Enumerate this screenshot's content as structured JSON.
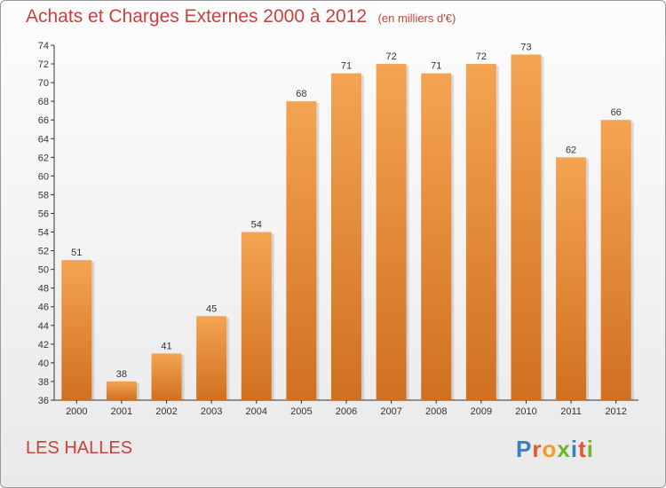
{
  "header": {
    "title": "Achats et Charges Externes 2000 à 2012",
    "unit": "(en milliers d'€)"
  },
  "footer": {
    "place": "LES HALLES",
    "logo": "Proxiti"
  },
  "colors": {
    "title": "#c8413b",
    "bar_light": "#f4a451",
    "bar_dark": "#d07020",
    "logo_letters": [
      "#3b7ec8",
      "#e8522f",
      "#f0a020",
      "#6bb82e",
      "#3b7ec8",
      "#e8522f",
      "#6bb82e"
    ]
  },
  "chart_data": {
    "type": "bar",
    "title": "Achats et Charges Externes 2000 à 2012",
    "subtitle": "(en milliers d'€)",
    "categories": [
      "2000",
      "2001",
      "2002",
      "2003",
      "2004",
      "2005",
      "2006",
      "2007",
      "2008",
      "2009",
      "2010",
      "2011",
      "2012"
    ],
    "values": [
      51,
      38,
      41,
      45,
      54,
      68,
      71,
      72,
      71,
      72,
      73,
      62,
      66
    ],
    "ylim": [
      36,
      74
    ],
    "ytick_step": 2,
    "grid": false,
    "data_labels": true
  }
}
